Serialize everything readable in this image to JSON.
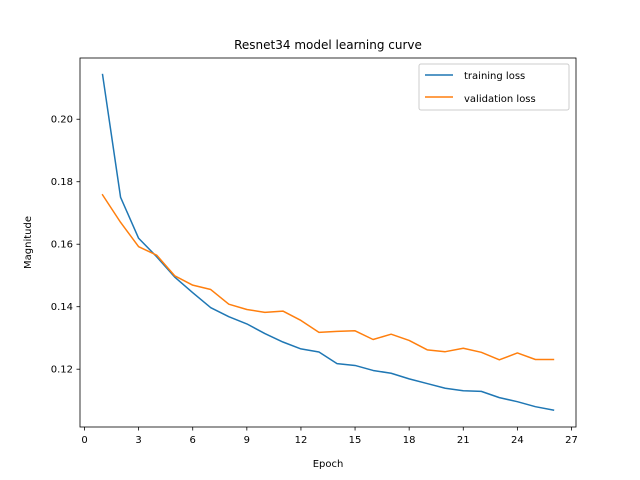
{
  "chart_data": {
    "type": "line",
    "title": "Resnet34 model learning curve",
    "xlabel": "Epoch",
    "ylabel": "Magnitude",
    "xlim": [
      -0.25,
      27.25
    ],
    "ylim": [
      0.1015,
      0.2196
    ],
    "xticks": [
      0,
      3,
      6,
      9,
      12,
      15,
      18,
      21,
      24,
      27
    ],
    "xtick_labels": [
      "0",
      "3",
      "6",
      "9",
      "12",
      "15",
      "18",
      "21",
      "24",
      "27"
    ],
    "yticks": [
      0.12,
      0.14,
      0.16,
      0.18,
      0.2
    ],
    "ytick_labels": [
      "0.12",
      "0.14",
      "0.16",
      "0.18",
      "0.20"
    ],
    "grid": false,
    "legend_position": "top-right",
    "x": [
      1,
      2,
      3,
      4,
      5,
      6,
      7,
      8,
      9,
      10,
      11,
      12,
      13,
      14,
      15,
      16,
      17,
      18,
      19,
      20,
      21,
      22,
      23,
      24,
      25,
      26
    ],
    "series": [
      {
        "name": "training loss",
        "color": "#1f77b4",
        "values": [
          0.2143,
          0.175,
          0.1619,
          0.156,
          0.1495,
          0.1445,
          0.1397,
          0.1368,
          0.1345,
          0.1314,
          0.1287,
          0.1265,
          0.1255,
          0.1218,
          0.1212,
          0.1196,
          0.1187,
          0.1169,
          0.1154,
          0.1139,
          0.1131,
          0.1129,
          0.1109,
          0.1096,
          0.108,
          0.1069
        ]
      },
      {
        "name": "validation loss",
        "color": "#ff7f0e",
        "values": [
          0.1758,
          0.167,
          0.1592,
          0.1565,
          0.1499,
          0.1469,
          0.1455,
          0.1408,
          0.1391,
          0.1382,
          0.1386,
          0.1356,
          0.1318,
          0.1321,
          0.1323,
          0.1295,
          0.1312,
          0.1292,
          0.1262,
          0.1256,
          0.1267,
          0.1254,
          0.123,
          0.1252,
          0.1231,
          0.1231
        ]
      }
    ]
  }
}
